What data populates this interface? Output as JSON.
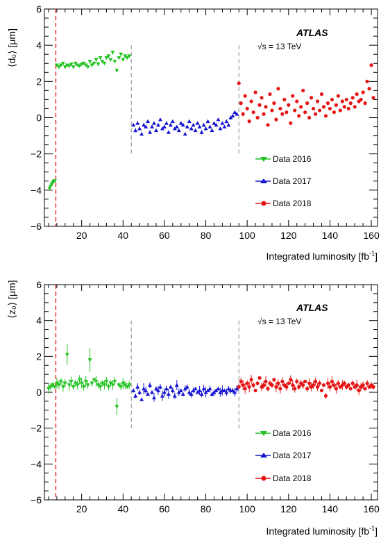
{
  "experiment": "ATLAS",
  "energy": "√s = 13 TeV",
  "xlabel": "Integrated luminosity [fb",
  "xlabel_sup": "-1",
  "xlabel_close": "]",
  "legend": [
    "Data 2016",
    "Data 2017",
    "Data 2018"
  ],
  "colors": {
    "d2016": "#22c322",
    "d2017": "#1414d2",
    "d2018": "#e61414",
    "lumi_marker": "#e63232",
    "boundary": "#999999"
  },
  "chart_data": [
    {
      "type": "scatter",
      "ylabel": "⟨d₀⟩ [μm]",
      "xlim": [
        2,
        163
      ],
      "ylim": [
        -6,
        6
      ],
      "xticks": [
        20,
        40,
        60,
        80,
        100,
        120,
        140,
        160
      ],
      "yticks": [
        -6,
        -4,
        -2,
        0,
        2,
        4,
        6
      ],
      "vlines": {
        "lumi_marker": 7.5,
        "boundaries": [
          44,
          96
        ],
        "boundary_yrange": [
          -2,
          4
        ]
      },
      "series": [
        {
          "name": "Data 2016",
          "marker": "triangle-down",
          "x": [
            4.5,
            5,
            5.5,
            6,
            6.5,
            7,
            8,
            9,
            10,
            11,
            12,
            13,
            14,
            15,
            16,
            17,
            18,
            19,
            20,
            21,
            22,
            23,
            24,
            25,
            26,
            27,
            28,
            29,
            30,
            31,
            32,
            33,
            34,
            35,
            36,
            37,
            38,
            39,
            40,
            41,
            42,
            43
          ],
          "y": [
            -3.9,
            -3.8,
            -3.7,
            -3.6,
            -3.5,
            -3.5,
            2.9,
            2.8,
            2.9,
            3.0,
            2.8,
            2.9,
            2.85,
            2.95,
            2.8,
            3.0,
            2.9,
            2.85,
            2.95,
            3.0,
            2.9,
            2.8,
            3.1,
            2.9,
            3.0,
            3.2,
            2.95,
            3.3,
            3.1,
            3.0,
            3.3,
            3.4,
            3.2,
            3.6,
            3.1,
            2.6,
            3.3,
            3.5,
            3.2,
            3.4,
            3.3,
            3.4
          ]
        },
        {
          "name": "Data 2017",
          "marker": "triangle-up",
          "x": [
            45,
            46,
            47,
            48,
            49,
            50,
            51,
            52,
            53,
            54,
            55,
            56,
            57,
            58,
            59,
            60,
            61,
            62,
            63,
            64,
            65,
            66,
            67,
            68,
            69,
            70,
            71,
            72,
            73,
            74,
            75,
            76,
            77,
            78,
            79,
            80,
            81,
            82,
            83,
            84,
            85,
            86,
            87,
            88,
            89,
            90,
            91,
            92,
            93,
            94,
            95
          ],
          "y": [
            -0.4,
            -0.7,
            -0.3,
            -0.6,
            -0.9,
            -0.4,
            -0.5,
            -0.2,
            -0.8,
            -0.5,
            -0.3,
            -0.7,
            -0.4,
            -0.1,
            -0.6,
            -0.5,
            -0.3,
            -0.8,
            -0.4,
            -0.2,
            -0.6,
            -0.5,
            -0.7,
            -0.3,
            -0.4,
            -0.9,
            -0.5,
            -0.2,
            -0.6,
            -0.4,
            -0.7,
            -0.3,
            -0.5,
            -0.8,
            -0.4,
            -0.6,
            -0.2,
            -0.5,
            -0.7,
            -0.3,
            -0.4,
            -0.1,
            -0.6,
            -0.3,
            -0.5,
            -0.2,
            -0.4,
            0.0,
            0.1,
            0.3,
            0.2
          ]
        },
        {
          "name": "Data 2018",
          "marker": "circle",
          "x": [
            96,
            97,
            98,
            99,
            100,
            101,
            102,
            103,
            104,
            105,
            106,
            107,
            108,
            109,
            110,
            111,
            112,
            113,
            114,
            115,
            116,
            117,
            118,
            119,
            120,
            121,
            122,
            123,
            124,
            125,
            126,
            127,
            128,
            129,
            130,
            131,
            132,
            133,
            134,
            135,
            136,
            137,
            138,
            139,
            140,
            141,
            142,
            143,
            144,
            145,
            146,
            147,
            148,
            149,
            150,
            151,
            152,
            153,
            154,
            155,
            156,
            157,
            158,
            159,
            160,
            161
          ],
          "y": [
            1.9,
            0.8,
            0.2,
            1.2,
            0.5,
            -0.2,
            0.9,
            0.3,
            1.4,
            0.0,
            0.7,
            1.1,
            0.2,
            0.6,
            -0.4,
            1.3,
            0.4,
            0.8,
            -0.1,
            1.6,
            0.5,
            0.2,
            1.0,
            0.3,
            0.7,
            -0.3,
            1.2,
            0.4,
            0.9,
            0.1,
            0.6,
            1.5,
            0.3,
            0.8,
            0.0,
            1.1,
            0.5,
            0.2,
            0.9,
            0.4,
            1.3,
            0.6,
            0.1,
            0.8,
            0.5,
            1.0,
            0.3,
            0.7,
            1.2,
            0.4,
            0.9,
            0.6,
            1.0,
            0.5,
            0.8,
            1.1,
            0.6,
            1.3,
            0.9,
            1.0,
            1.4,
            0.8,
            2.0,
            1.6,
            2.9,
            1.1
          ]
        }
      ]
    },
    {
      "type": "scatter",
      "ylabel": "⟨z₀⟩ [μm]",
      "xlim": [
        2,
        163
      ],
      "ylim": [
        -6,
        6
      ],
      "xticks": [
        20,
        40,
        60,
        80,
        100,
        120,
        140,
        160
      ],
      "yticks": [
        -6,
        -4,
        -2,
        0,
        2,
        4,
        6
      ],
      "vlines": {
        "lumi_marker": 7.5,
        "boundaries": [
          44,
          96
        ],
        "boundary_yrange": [
          -2,
          4
        ]
      },
      "series": [
        {
          "name": "Data 2016",
          "marker": "triangle-down",
          "x": [
            4,
            5,
            6,
            7,
            8,
            9,
            10,
            11,
            12,
            13,
            14,
            15,
            16,
            17,
            18,
            19,
            20,
            21,
            22,
            23,
            24,
            25,
            26,
            27,
            28,
            29,
            30,
            31,
            32,
            33,
            34,
            35,
            36,
            37,
            38,
            39,
            40,
            41,
            42,
            43
          ],
          "y": [
            0.2,
            0.3,
            0.4,
            0.3,
            0.5,
            0.4,
            0.6,
            0.3,
            0.5,
            2.1,
            0.4,
            0.6,
            0.3,
            0.5,
            0.4,
            0.7,
            0.5,
            0.3,
            0.6,
            0.4,
            1.8,
            0.5,
            0.7,
            0.6,
            0.4,
            0.3,
            0.5,
            0.4,
            0.6,
            0.3,
            0.5,
            0.4,
            0.6,
            -0.8,
            0.4,
            0.3,
            0.5,
            0.4,
            0.3,
            0.4
          ]
        },
        {
          "name": "Data 2017",
          "marker": "triangle-up",
          "x": [
            45,
            46,
            47,
            48,
            49,
            50,
            51,
            52,
            53,
            54,
            55,
            56,
            57,
            58,
            59,
            60,
            61,
            62,
            63,
            64,
            65,
            66,
            67,
            68,
            69,
            70,
            71,
            72,
            73,
            74,
            75,
            76,
            77,
            78,
            79,
            80,
            81,
            82,
            83,
            84,
            85,
            86,
            87,
            88,
            89,
            90,
            91,
            92,
            93,
            94,
            95
          ],
          "y": [
            0.1,
            -0.2,
            0.3,
            0.0,
            -0.4,
            0.2,
            0.1,
            -0.1,
            0.4,
            0.0,
            -0.3,
            0.2,
            0.1,
            0.3,
            -0.2,
            0.0,
            0.2,
            -0.1,
            0.3,
            0.1,
            -0.2,
            0.4,
            0.0,
            0.1,
            -0.1,
            0.2,
            0.3,
            0.0,
            -0.1,
            0.1,
            0.2,
            0.0,
            0.1,
            -0.1,
            0.2,
            0.0,
            0.1,
            0.2,
            -0.1,
            0.0,
            0.1,
            0.2,
            0.0,
            0.1,
            0.1,
            0.0,
            0.2,
            0.1,
            0.1,
            0.0,
            0.2
          ]
        },
        {
          "name": "Data 2018",
          "marker": "circle",
          "x": [
            96,
            97,
            98,
            99,
            100,
            101,
            102,
            103,
            104,
            105,
            106,
            107,
            108,
            109,
            110,
            111,
            112,
            113,
            114,
            115,
            116,
            117,
            118,
            119,
            120,
            121,
            122,
            123,
            124,
            125,
            126,
            127,
            128,
            129,
            130,
            131,
            132,
            133,
            134,
            135,
            136,
            137,
            138,
            139,
            140,
            141,
            142,
            143,
            144,
            145,
            146,
            147,
            148,
            149,
            150,
            151,
            152,
            153,
            154,
            155,
            156,
            157,
            158,
            159,
            160,
            161
          ],
          "y": [
            0.3,
            0.6,
            0.4,
            0.2,
            0.5,
            0.3,
            0.7,
            0.4,
            0.1,
            0.5,
            0.8,
            0.3,
            0.4,
            0.6,
            0.2,
            0.5,
            0.4,
            0.7,
            0.3,
            0.5,
            0.2,
            0.6,
            0.4,
            0.3,
            0.5,
            0.7,
            0.4,
            0.2,
            0.6,
            0.3,
            0.5,
            0.4,
            0.6,
            0.2,
            0.5,
            0.3,
            0.4,
            0.6,
            0.3,
            0.5,
            0.1,
            0.4,
            -0.2,
            0.5,
            0.3,
            0.6,
            0.4,
            0.2,
            0.5,
            0.3,
            0.4,
            0.5,
            0.3,
            0.4,
            0.2,
            0.5,
            0.3,
            0.4,
            0.1,
            0.3,
            0.4,
            0.2,
            0.5,
            0.3,
            0.4,
            0.3
          ]
        }
      ]
    }
  ]
}
